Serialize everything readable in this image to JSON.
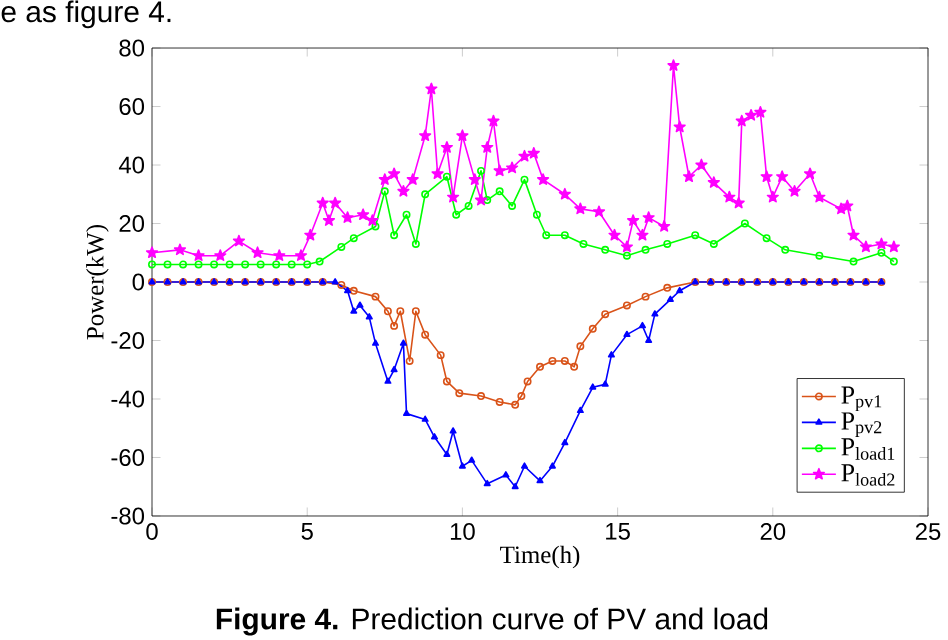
{
  "chart_data": {
    "type": "line",
    "xlabel": "Time(h)",
    "ylabel": "Power(kW)",
    "annotations": [
      "e as figure 4.",
      "**Figure 4.**   Prediction curve of PV and load"
    ],
    "xlim": [
      0,
      25
    ],
    "xticks": [
      0,
      5,
      10,
      15,
      20,
      25
    ],
    "ylim": [
      -80,
      80
    ],
    "yticks": [
      -80,
      -60,
      -40,
      -20,
      0,
      20,
      40,
      60,
      80
    ],
    "grid": false,
    "legend": "bottom right",
    "line_style": "solid",
    "series": [
      {
        "name": "P$_{pv1}$",
        "color": "#d95319",
        "marker": "circle",
        "x": [
          0,
          0.5,
          1,
          1.5,
          2,
          2.5,
          3,
          3.5,
          4,
          4.5,
          5,
          5.5,
          6.1,
          6.5,
          7.2,
          7.6,
          7.8,
          8.0,
          8.3,
          8.5,
          8.8,
          9.3,
          9.5,
          9.9,
          10.6,
          11.2,
          11.7,
          11.9,
          12.1,
          12.5,
          12.9,
          13.3,
          13.6,
          13.8,
          14.2,
          14.6,
          15.3,
          15.9,
          16.6,
          17.5,
          18,
          18.5,
          19,
          19.5,
          20,
          20.5,
          21,
          21.5,
          22,
          22.5,
          23,
          23.5
        ],
        "values": [
          0,
          0,
          0,
          0,
          0,
          0,
          0,
          0,
          0,
          0,
          0,
          0,
          -1,
          -3,
          -5,
          -10,
          -15,
          -10,
          -27,
          -10,
          -18,
          -25,
          -34,
          -38,
          -39,
          -41,
          -42,
          -39,
          -34,
          -29,
          -27,
          -27,
          -29,
          -22,
          -16,
          -11,
          -8,
          -5,
          -2,
          0,
          0,
          0,
          0,
          0,
          0,
          0,
          0,
          0,
          0,
          0,
          0,
          0
        ]
      },
      {
        "name": "P$_{pv2}$",
        "color": "#0000ff",
        "marker": "triangle",
        "x": [
          0,
          0.5,
          1,
          1.5,
          2,
          2.5,
          3,
          3.5,
          4,
          4.5,
          5,
          5.5,
          5.9,
          6.3,
          6.5,
          6.7,
          7.0,
          7.2,
          7.6,
          7.8,
          8.1,
          8.2,
          8.8,
          9.1,
          9.5,
          9.7,
          10.0,
          10.3,
          10.8,
          11.4,
          11.7,
          12.0,
          12.5,
          12.9,
          13.3,
          13.8,
          14.2,
          14.6,
          14.8,
          15.3,
          15.8,
          16.0,
          16.2,
          16.7,
          17.0,
          17.5,
          18,
          18.5,
          19,
          19.5,
          20,
          20.5,
          21,
          21.5,
          22,
          22.5,
          23,
          23.5
        ],
        "values": [
          0,
          0,
          0,
          0,
          0,
          0,
          0,
          0,
          0,
          0,
          0,
          0,
          0,
          -3,
          -10,
          -8,
          -12,
          -21,
          -34,
          -30,
          -21,
          -45,
          -47,
          -53,
          -59,
          -51,
          -63,
          -61,
          -69,
          -66,
          -70,
          -63,
          -68,
          -63,
          -55,
          -44,
          -36,
          -35,
          -25,
          -18,
          -15,
          -20,
          -11,
          -6,
          -3,
          0,
          0,
          0,
          0,
          0,
          0,
          0,
          0,
          0,
          0,
          0,
          0,
          0
        ]
      },
      {
        "name": "P$_{load1}$",
        "color": "#00ff00",
        "marker": "circle",
        "x": [
          0,
          0.5,
          1,
          1.5,
          2,
          2.5,
          3,
          3.5,
          4,
          4.5,
          5,
          5.4,
          6.1,
          6.5,
          7.2,
          7.5,
          7.8,
          8.2,
          8.5,
          8.8,
          9.5,
          9.8,
          10.2,
          10.6,
          10.8,
          11.2,
          11.6,
          12.0,
          12.4,
          12.7,
          13.3,
          13.9,
          14.6,
          15.3,
          15.9,
          16.6,
          17.5,
          18.1,
          19.1,
          19.8,
          20.4,
          21.5,
          22.6,
          23.5,
          23.9
        ],
        "values": [
          6,
          6,
          6,
          6,
          6,
          6,
          6,
          6,
          6,
          6,
          6,
          7,
          12,
          15,
          19,
          31,
          16,
          23,
          13,
          30,
          36,
          23,
          26,
          38,
          28,
          31,
          26,
          35,
          23,
          16,
          16,
          13,
          11,
          9,
          11,
          13,
          16,
          13,
          20,
          15,
          11,
          9,
          7,
          10,
          7
        ]
      },
      {
        "name": "P$_{load2}$",
        "color": "#ff00ff",
        "marker": "star",
        "x": [
          0,
          0.9,
          1.5,
          2.2,
          2.8,
          3.4,
          4.1,
          4.8,
          5.1,
          5.5,
          5.7,
          5.9,
          6.3,
          6.8,
          7.1,
          7.5,
          7.8,
          8.1,
          8.4,
          8.8,
          9.0,
          9.2,
          9.5,
          9.7,
          10.0,
          10.4,
          10.6,
          10.8,
          11.0,
          11.2,
          11.6,
          12.0,
          12.3,
          12.6,
          13.3,
          13.8,
          14.4,
          14.9,
          15.3,
          15.5,
          15.8,
          16.0,
          16.5,
          16.8,
          17.0,
          17.3,
          17.7,
          18.1,
          18.6,
          18.9,
          19.0,
          19.3,
          19.6,
          19.8,
          20.0,
          20.3,
          20.7,
          21.2,
          21.5,
          22.2,
          22.4,
          22.6,
          23.0,
          23.5,
          23.9
        ],
        "values": [
          10,
          11,
          9,
          9,
          14,
          10,
          9,
          9,
          16,
          27,
          21,
          27,
          22,
          23,
          21,
          35,
          37,
          31,
          35,
          50,
          66,
          37,
          46,
          29,
          50,
          35,
          28,
          46,
          55,
          38,
          39,
          43,
          44,
          35,
          30,
          25,
          24,
          16,
          12,
          21,
          16,
          22,
          19,
          74,
          53,
          36,
          40,
          34,
          29,
          27,
          55,
          57,
          58,
          36,
          29,
          36,
          31,
          37,
          29,
          25,
          26,
          16,
          12,
          13,
          12
        ]
      }
    ]
  }
}
